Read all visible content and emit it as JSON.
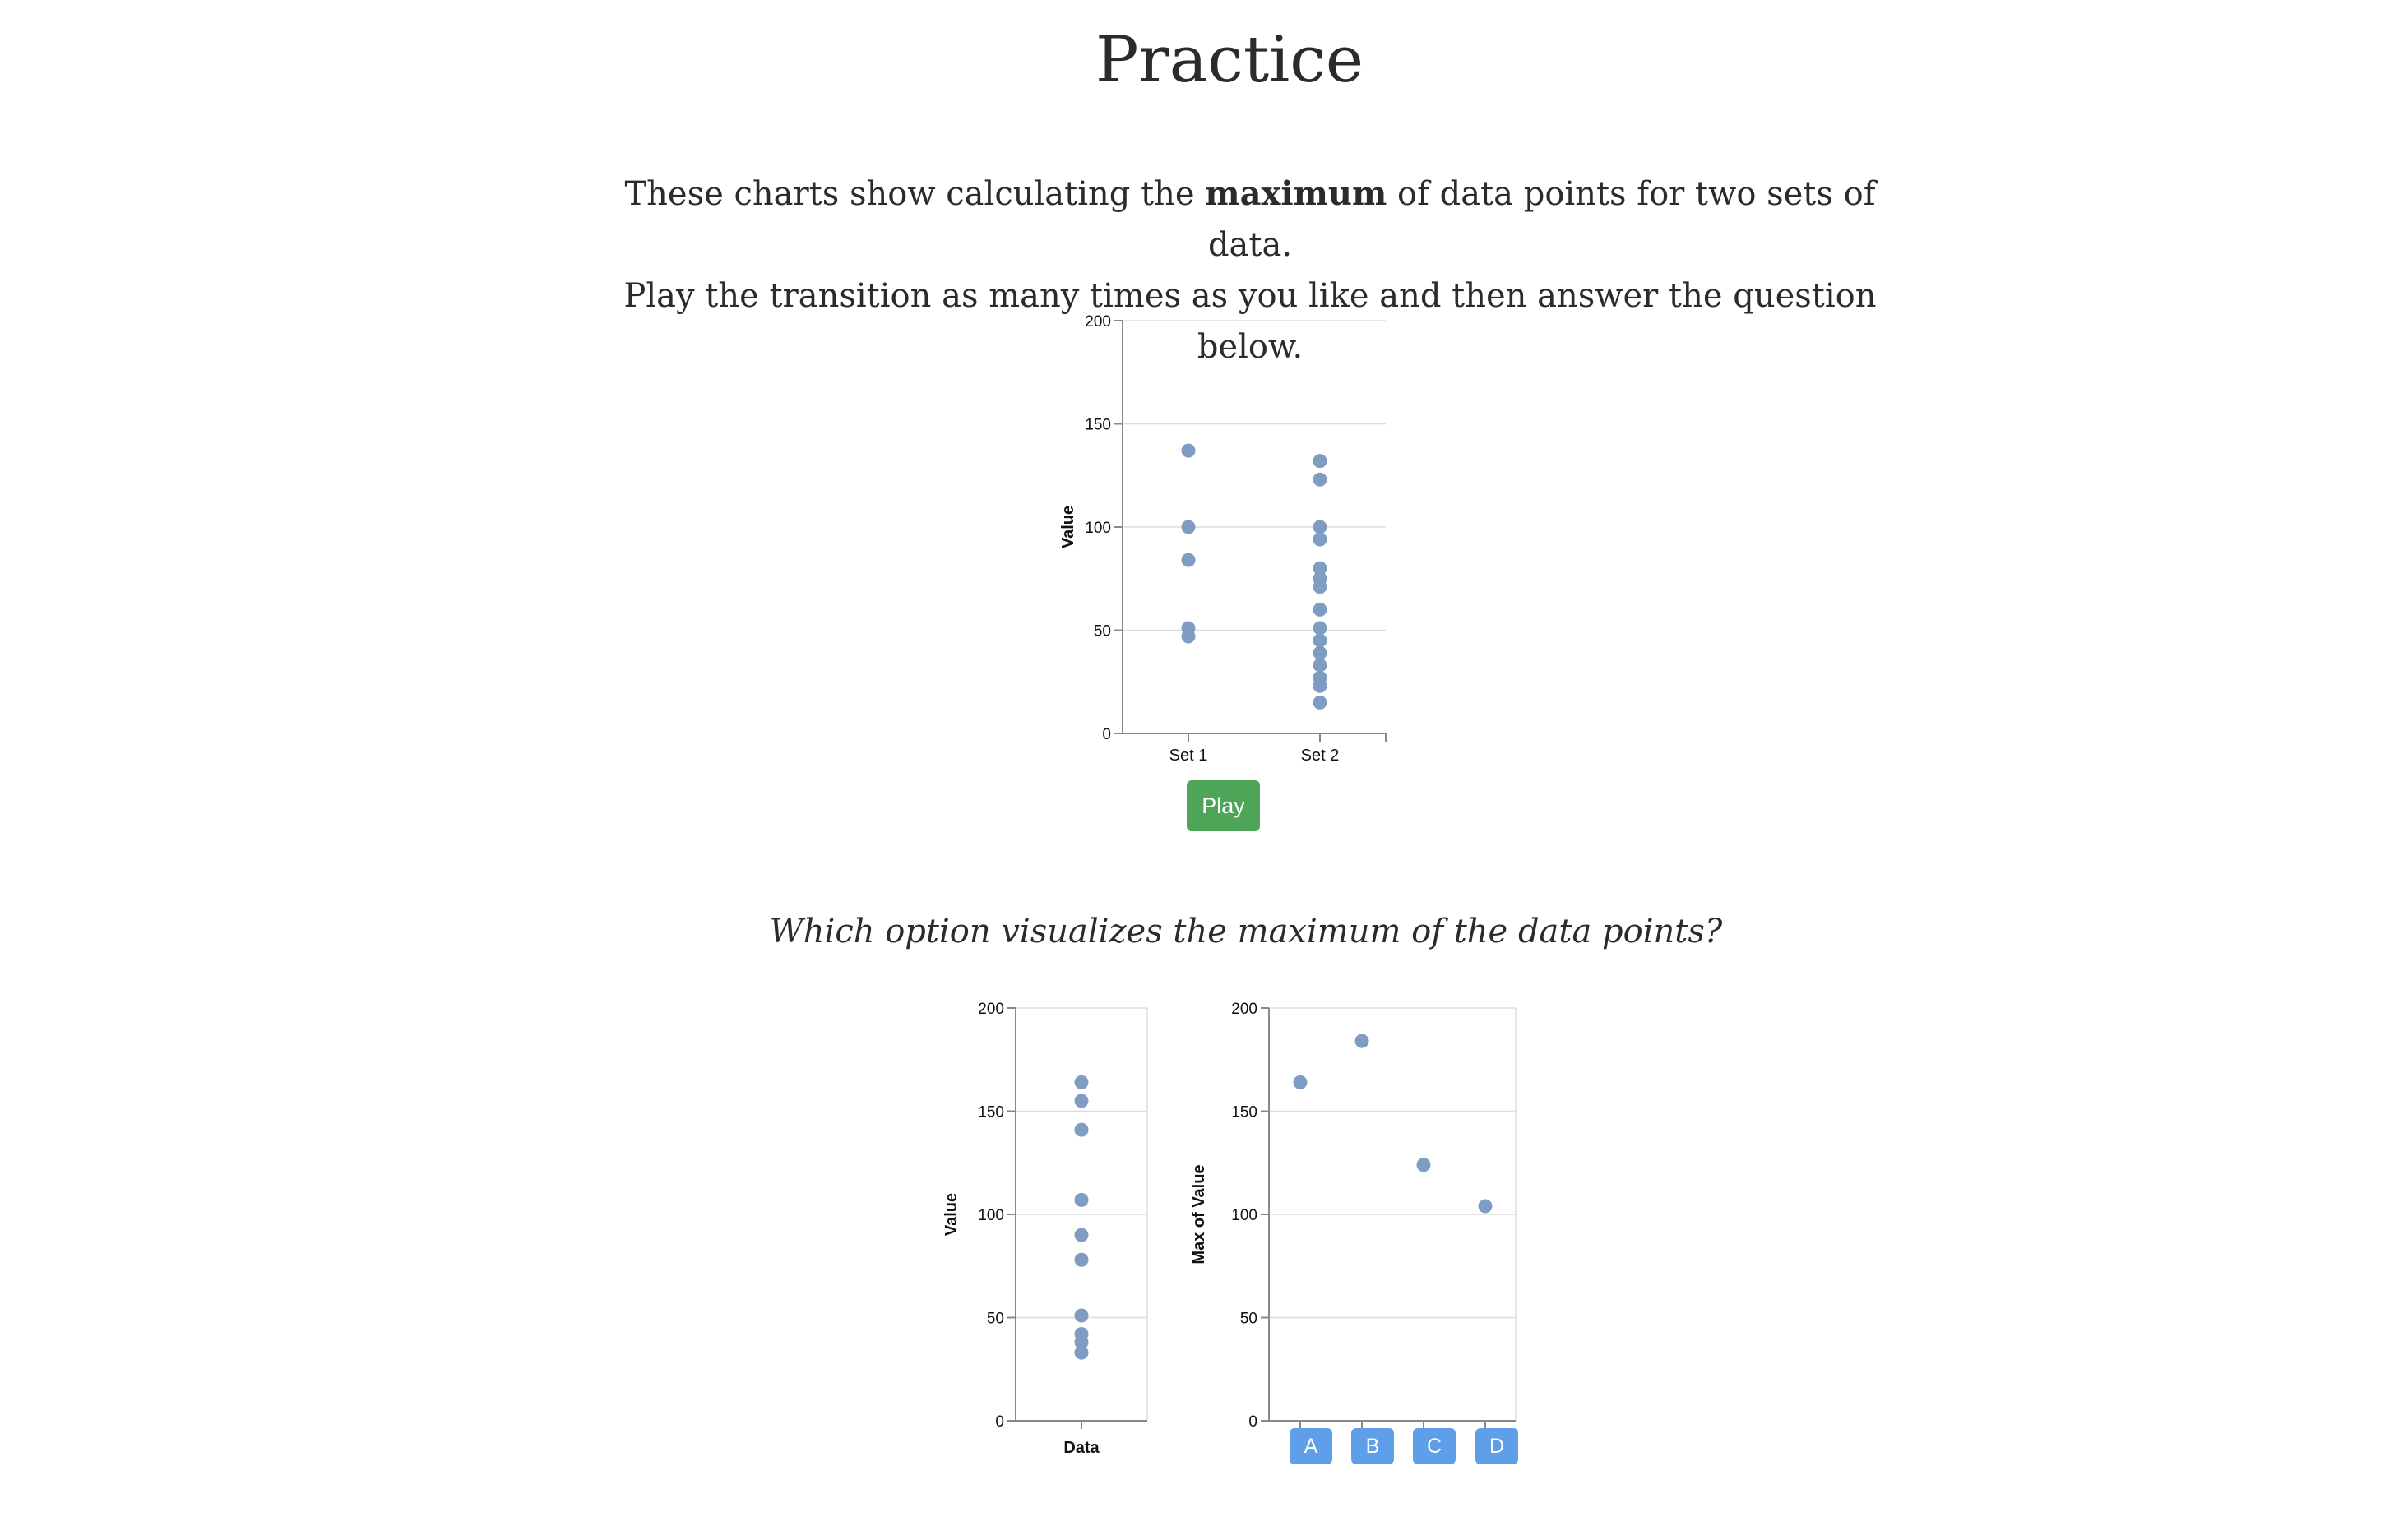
{
  "page": {
    "title": "Practice",
    "intro_part1": "These charts show calculating the ",
    "intro_bold": "maximum",
    "intro_part2": " of data points for two sets of data.",
    "intro_line2": "Play the transition as many times as you like and then answer the question below.",
    "play_label": "Play",
    "question": "Which option visualizes the maximum of the data points?"
  },
  "colors": {
    "point": "#7f9cc3",
    "play_button": "#4fa557",
    "option_button": "#5f9ee8",
    "grid": "#dddddd",
    "axis": "#888888"
  },
  "options": [
    "A",
    "B",
    "C",
    "D"
  ],
  "chart_data": [
    {
      "type": "scatter",
      "title": "",
      "xlabel": "",
      "ylabel": "Value",
      "ylim": [
        0,
        200
      ],
      "yticks": [
        0,
        50,
        100,
        150,
        200
      ],
      "grid": true,
      "categories": [
        "Set 1",
        "Set 2"
      ],
      "series": [
        {
          "category": "Set 1",
          "values": [
            137,
            100,
            84,
            51,
            47
          ]
        },
        {
          "category": "Set 2",
          "values": [
            132,
            123,
            100,
            94,
            80,
            75,
            71,
            60,
            51,
            45,
            39,
            33,
            27,
            23,
            15
          ]
        }
      ]
    },
    {
      "type": "scatter",
      "title": "",
      "xlabel": "Data",
      "ylabel": "Value",
      "ylim": [
        0,
        200
      ],
      "yticks": [
        0,
        50,
        100,
        150,
        200
      ],
      "grid": true,
      "values": [
        164,
        155,
        141,
        107,
        90,
        78,
        51,
        42,
        38,
        33
      ]
    },
    {
      "type": "scatter",
      "title": "",
      "xlabel": "",
      "ylabel": "Max of Value",
      "ylim": [
        0,
        200
      ],
      "yticks": [
        0,
        50,
        100,
        150,
        200
      ],
      "grid": true,
      "categories": [
        "A",
        "B",
        "C",
        "D"
      ],
      "values": [
        164,
        184,
        124,
        104
      ]
    }
  ]
}
